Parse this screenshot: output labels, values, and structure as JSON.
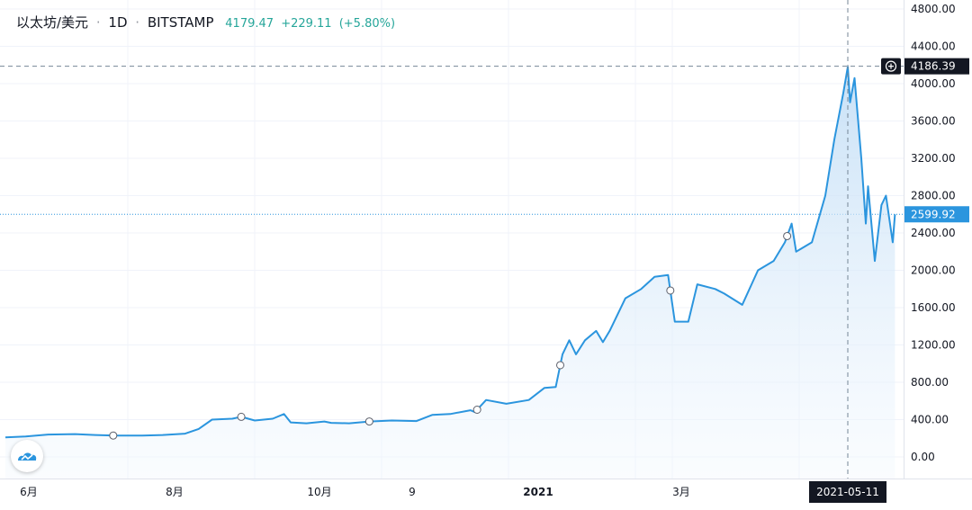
{
  "header": {
    "symbol": "以太坊/美元",
    "interval": "1D",
    "exchange": "BITSTAMP",
    "last": "4179.47",
    "change": "+229.11",
    "change_pct": "(+5.80%)"
  },
  "crosshair": {
    "price_label": "4186.39",
    "date_label": "2021-05-11"
  },
  "last_price_label": "2599.92",
  "chart_data": {
    "type": "area",
    "x_tick_labels": [
      "6月",
      "8月",
      "10月",
      "9",
      "2021",
      "3月"
    ],
    "y_tick_labels": [
      "0.00",
      "400.00",
      "800.00",
      "1200.00",
      "1600.00",
      "2000.00",
      "2400.00",
      "2800.00",
      "3200.00",
      "3600.00",
      "4000.00",
      "4400.00",
      "4800.00"
    ],
    "ylim": [
      -150,
      4860
    ],
    "x": [
      "2020-05-01",
      "2020-05-10",
      "2020-05-20",
      "2020-06-01",
      "2020-06-10",
      "2020-06-20",
      "2020-07-01",
      "2020-07-10",
      "2020-07-20",
      "2020-07-26",
      "2020-08-01",
      "2020-08-10",
      "2020-08-14",
      "2020-08-20",
      "2020-08-28",
      "2020-09-02",
      "2020-09-05",
      "2020-09-12",
      "2020-09-20",
      "2020-09-23",
      "2020-10-01",
      "2020-10-10",
      "2020-10-20",
      "2020-10-31",
      "2020-11-07",
      "2020-11-15",
      "2020-11-24",
      "2020-11-26",
      "2020-12-01",
      "2020-12-10",
      "2020-12-20",
      "2020-12-27",
      "2021-01-01",
      "2021-01-04",
      "2021-01-07",
      "2021-01-10",
      "2021-01-14",
      "2021-01-19",
      "2021-01-22",
      "2021-01-25",
      "2021-02-01",
      "2021-02-08",
      "2021-02-14",
      "2021-02-20",
      "2021-02-23",
      "2021-03-01",
      "2021-03-05",
      "2021-03-13",
      "2021-03-17",
      "2021-03-25",
      "2021-04-01",
      "2021-04-08",
      "2021-04-13",
      "2021-04-16",
      "2021-04-18",
      "2021-04-25",
      "2021-05-01",
      "2021-05-05",
      "2021-05-09",
      "2021-05-11",
      "2021-05-12",
      "2021-05-14",
      "2021-05-17",
      "2021-05-19",
      "2021-05-20",
      "2021-05-23",
      "2021-05-26",
      "2021-05-28",
      "2021-05-31",
      "2021-06-01"
    ],
    "series": [
      {
        "values": [
          210,
          220,
          240,
          245,
          235,
          228,
          228,
          235,
          250,
          300,
          400,
          410,
          430,
          390,
          410,
          460,
          370,
          360,
          380,
          365,
          360,
          380,
          390,
          385,
          450,
          460,
          500,
          480,
          610,
          570,
          610,
          740,
          750,
          1100,
          1250,
          1100,
          1250,
          1350,
          1230,
          1350,
          1700,
          1800,
          1930,
          1950,
          1450,
          1450,
          1850,
          1800,
          1750,
          1630,
          2000,
          2100,
          2300,
          2500,
          2200,
          2300,
          2800,
          3400,
          3900,
          4180,
          3800,
          4060,
          3200,
          2500,
          2900,
          2100,
          2700,
          2800,
          2300,
          2600
        ]
      }
    ],
    "markers": [
      "2020-06-18",
      "2020-08-14",
      "2020-10-10",
      "2020-11-27",
      "2021-01-03",
      "2021-02-21",
      "2021-04-14"
    ],
    "grid": true,
    "crosshair_date": "2021-05-11",
    "crosshair_price": 4186.39,
    "last_price": 2599.92,
    "colors": {
      "line": "#2b95de",
      "area_top": "#bfdcf5",
      "area_bottom": "#f2f8fe",
      "axis_text": "#131722",
      "grid": "#f0f3fa",
      "crosshair": "#758696",
      "label_dark": "#131722",
      "label_blue": "#2b95de",
      "change": "#26a69a"
    }
  }
}
